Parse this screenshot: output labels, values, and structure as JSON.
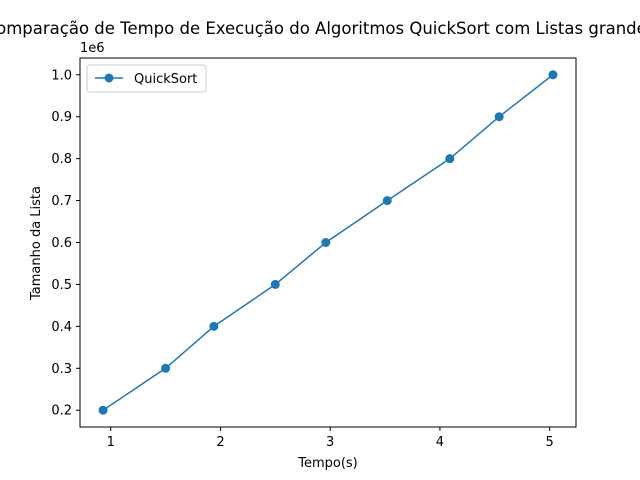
{
  "chart_data": {
    "type": "line",
    "title": "Comparação de Tempo de Execução do Algoritmos QuickSort com Listas grandes",
    "xlabel": "Tempo(s)",
    "ylabel": "Tamanho da Lista",
    "y_offset_label": "1e6",
    "xlim": [
      0.72,
      5.24
    ],
    "ylim": [
      0.16,
      1.04
    ],
    "xticks": [
      1,
      2,
      3,
      4,
      5
    ],
    "yticks": [
      0.2,
      0.3,
      0.4,
      0.5,
      0.6,
      0.7,
      0.8,
      0.9,
      1.0
    ],
    "ytick_labels": [
      "0.2",
      "0.3",
      "0.4",
      "0.5",
      "0.6",
      "0.7",
      "0.8",
      "0.9",
      "1.0"
    ],
    "grid": false,
    "legend_position": "upper left",
    "series": [
      {
        "name": "QuickSort",
        "color": "#1f77b4",
        "marker": "circle",
        "x": [
          0.93,
          1.5,
          1.94,
          2.5,
          2.96,
          3.52,
          4.09,
          4.54,
          5.03
        ],
        "y": [
          0.2,
          0.3,
          0.4,
          0.5,
          0.6,
          0.7,
          0.8,
          0.9,
          1.0
        ]
      }
    ]
  }
}
